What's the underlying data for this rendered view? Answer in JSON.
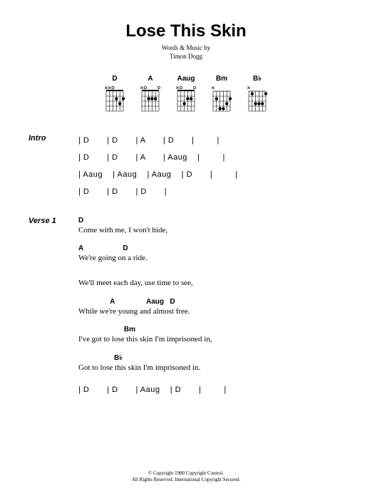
{
  "title": "Lose This Skin",
  "credits_line1": "Words & Music by",
  "credits_line2": "Timon Dogg",
  "chords": [
    {
      "name": "D",
      "dots": [
        [
          0,
          2
        ],
        [
          1,
          3
        ],
        [
          2,
          2
        ]
      ],
      "open": [
        3
      ],
      "mute": [
        4,
        5
      ],
      "nut": true
    },
    {
      "name": "A",
      "dots": [
        [
          1,
          2
        ],
        [
          2,
          2
        ],
        [
          3,
          2
        ]
      ],
      "open": [
        0,
        4
      ],
      "mute": [
        5
      ],
      "nut": true
    },
    {
      "name": "Aaug",
      "dots": [
        [
          1,
          2
        ],
        [
          2,
          2
        ],
        [
          3,
          3
        ]
      ],
      "open": [
        0,
        4
      ],
      "mute": [
        5
      ],
      "nut": true
    },
    {
      "name": "Bm",
      "dots": [
        [
          0,
          2
        ],
        [
          1,
          3
        ],
        [
          2,
          4
        ],
        [
          3,
          4
        ],
        [
          4,
          2
        ]
      ],
      "open": [],
      "mute": [
        5
      ],
      "nut": false
    },
    {
      "name": "B♭",
      "dots": [
        [
          0,
          1
        ],
        [
          1,
          3
        ],
        [
          2,
          3
        ],
        [
          3,
          3
        ],
        [
          4,
          1
        ]
      ],
      "open": [],
      "mute": [
        5
      ],
      "nut": false
    }
  ],
  "intro": {
    "label": "Intro",
    "rows": [
      [
        "D",
        "D",
        "A",
        "D",
        ""
      ],
      [
        "D",
        "D",
        "A",
        "Aaug",
        ""
      ],
      [
        "Aaug",
        "Aaug",
        "Aaug",
        "D",
        ""
      ],
      [
        "D",
        "D",
        "D"
      ]
    ]
  },
  "verse1": {
    "label": "Verse 1",
    "lines": [
      {
        "chords": "D",
        "lyric": "Come with me, I won't hide,"
      },
      {
        "chords": "A                    D",
        "lyric": "We're going on a ride."
      },
      {
        "chords": "",
        "lyric": "We'll meet each day, use time to see,"
      },
      {
        "chords": "                A                Aaug   D",
        "lyric": "While we're young and almost free."
      },
      {
        "chords": "                       Bm",
        "lyric": "I've got to lose this skin I'm imprisoned in,"
      },
      {
        "chords": "                  B♭",
        "lyric": "Got to lose this skin I'm imprisoned in."
      }
    ],
    "outro_row": [
      "D",
      "D",
      "Aaug",
      "D",
      ""
    ]
  },
  "copyright": {
    "line1": "© Copyright 1980 Copyright Control.",
    "line2": "All Rights Reserved. International Copyright Secured."
  }
}
